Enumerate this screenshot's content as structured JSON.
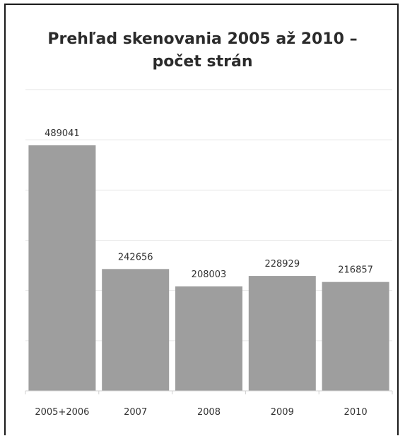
{
  "chart_data": {
    "type": "bar",
    "title_lines": [
      "Prehľad skenovania 2005 až 2010 –",
      "počet strán"
    ],
    "categories": [
      "2005+2006",
      "2007",
      "2008",
      "2009",
      "2010"
    ],
    "values": [
      489041,
      242656,
      208003,
      228929,
      216857
    ],
    "ylim": [
      0,
      600000
    ],
    "grid": true,
    "legend": "none",
    "bar_color": "#9e9e9e",
    "grid_color": "#e6e6e6"
  }
}
